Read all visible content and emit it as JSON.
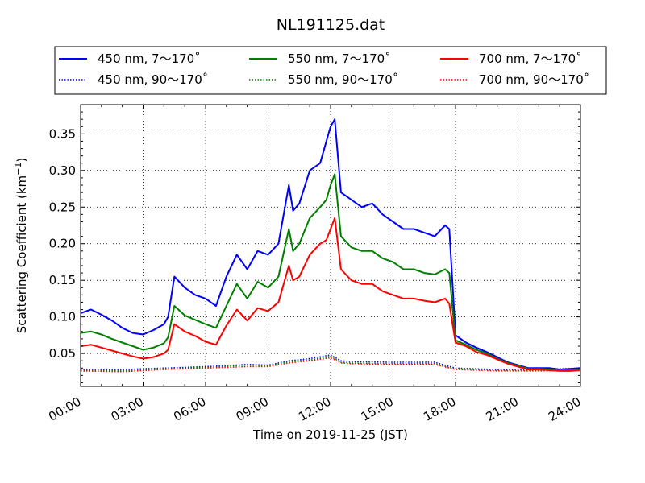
{
  "chart_data": {
    "type": "line",
    "title": "NL191125.dat",
    "xlabel": "Time on 2019-11-25 (JST)",
    "ylabel_main": "Scattering Coefficient (km",
    "ylabel_sup": "−1",
    "ylabel_close": ")",
    "x_unit": "hours",
    "xlim": [
      0,
      24
    ],
    "ylim": [
      0.005,
      0.39
    ],
    "x_ticks": [
      0,
      3,
      6,
      9,
      12,
      15,
      18,
      21,
      24
    ],
    "x_tick_labels": [
      "00:00",
      "03:00",
      "06:00",
      "09:00",
      "12:00",
      "15:00",
      "18:00",
      "21:00",
      "24:00"
    ],
    "y_ticks": [
      0.05,
      0.1,
      0.15,
      0.2,
      0.25,
      0.3,
      0.35
    ],
    "y_tick_labels": [
      "0.05",
      "0.10",
      "0.15",
      "0.20",
      "0.25",
      "0.30",
      "0.35"
    ],
    "grid": true,
    "legend_position": "top, above plot",
    "legend_columns": 3,
    "series": [
      {
        "name": "450 nm, 7～170˚",
        "color": "#0000ff",
        "style": "solid",
        "x": [
          0,
          0.5,
          1,
          1.5,
          2,
          2.5,
          3,
          3.5,
          4,
          4.2,
          4.5,
          5,
          5.5,
          6,
          6.5,
          7,
          7.5,
          8,
          8.5,
          9,
          9.5,
          10,
          10.2,
          10.5,
          11,
          11.5,
          11.8,
          12,
          12.2,
          12.5,
          13,
          13.5,
          14,
          14.5,
          15,
          15.5,
          16,
          16.5,
          17,
          17.5,
          17.7,
          18,
          18.5,
          19,
          19.5,
          20,
          20.5,
          21,
          21.5,
          22,
          22.5,
          23,
          23.5,
          24
        ],
        "y": [
          0.105,
          0.11,
          0.103,
          0.095,
          0.085,
          0.078,
          0.076,
          0.082,
          0.09,
          0.1,
          0.155,
          0.14,
          0.13,
          0.125,
          0.115,
          0.155,
          0.185,
          0.165,
          0.19,
          0.185,
          0.2,
          0.28,
          0.245,
          0.255,
          0.3,
          0.31,
          0.34,
          0.36,
          0.37,
          0.27,
          0.26,
          0.25,
          0.255,
          0.24,
          0.23,
          0.22,
          0.22,
          0.215,
          0.21,
          0.225,
          0.22,
          0.075,
          0.065,
          0.058,
          0.052,
          0.045,
          0.038,
          0.034,
          0.03,
          0.03,
          0.03,
          0.028,
          0.029,
          0.03
        ]
      },
      {
        "name": "550 nm, 7～170˚",
        "color": "#008000",
        "style": "solid",
        "x": [
          0,
          0.5,
          1,
          1.5,
          2,
          2.5,
          3,
          3.5,
          4,
          4.2,
          4.5,
          5,
          5.5,
          6,
          6.5,
          7,
          7.5,
          8,
          8.5,
          9,
          9.5,
          10,
          10.2,
          10.5,
          11,
          11.5,
          11.8,
          12,
          12.2,
          12.5,
          13,
          13.5,
          14,
          14.5,
          15,
          15.5,
          16,
          16.5,
          17,
          17.5,
          17.7,
          18,
          18.5,
          19,
          19.5,
          20,
          20.5,
          21,
          21.5,
          22,
          22.5,
          23,
          23.5,
          24
        ],
        "y": [
          0.078,
          0.08,
          0.076,
          0.07,
          0.065,
          0.06,
          0.055,
          0.058,
          0.064,
          0.072,
          0.115,
          0.102,
          0.096,
          0.09,
          0.085,
          0.115,
          0.145,
          0.125,
          0.148,
          0.14,
          0.155,
          0.22,
          0.19,
          0.2,
          0.235,
          0.25,
          0.26,
          0.28,
          0.295,
          0.21,
          0.195,
          0.19,
          0.19,
          0.18,
          0.175,
          0.165,
          0.165,
          0.16,
          0.158,
          0.165,
          0.16,
          0.068,
          0.062,
          0.055,
          0.05,
          0.043,
          0.037,
          0.033,
          0.029,
          0.029,
          0.028,
          0.027,
          0.027,
          0.028
        ]
      },
      {
        "name": "700 nm, 7～170˚",
        "color": "#ff0000",
        "style": "solid",
        "x": [
          0,
          0.5,
          1,
          1.5,
          2,
          2.5,
          3,
          3.5,
          4,
          4.2,
          4.5,
          5,
          5.5,
          6,
          6.5,
          7,
          7.5,
          8,
          8.5,
          9,
          9.5,
          10,
          10.2,
          10.5,
          11,
          11.5,
          11.8,
          12,
          12.2,
          12.5,
          13,
          13.5,
          14,
          14.5,
          15,
          15.5,
          16,
          16.5,
          17,
          17.5,
          17.7,
          18,
          18.5,
          19,
          19.5,
          20,
          20.5,
          21,
          21.5,
          22,
          22.5,
          23,
          23.5,
          24
        ],
        "y": [
          0.06,
          0.062,
          0.058,
          0.054,
          0.05,
          0.046,
          0.043,
          0.045,
          0.05,
          0.055,
          0.09,
          0.08,
          0.074,
          0.066,
          0.062,
          0.088,
          0.11,
          0.095,
          0.112,
          0.108,
          0.12,
          0.17,
          0.15,
          0.155,
          0.185,
          0.2,
          0.205,
          0.22,
          0.235,
          0.165,
          0.15,
          0.145,
          0.145,
          0.135,
          0.13,
          0.125,
          0.125,
          0.122,
          0.12,
          0.125,
          0.118,
          0.065,
          0.06,
          0.052,
          0.048,
          0.042,
          0.036,
          0.032,
          0.028,
          0.028,
          0.027,
          0.026,
          0.026,
          0.027
        ]
      },
      {
        "name": "450 nm, 90～170˚",
        "color": "#0000ff",
        "style": "dotted",
        "x": [
          0,
          2,
          4,
          6,
          8,
          9,
          10,
          11,
          12,
          12.5,
          13,
          15,
          17,
          18,
          20,
          22,
          24
        ],
        "y": [
          0.028,
          0.028,
          0.03,
          0.032,
          0.035,
          0.034,
          0.04,
          0.043,
          0.048,
          0.04,
          0.039,
          0.038,
          0.038,
          0.03,
          0.028,
          0.028,
          0.03
        ]
      },
      {
        "name": "550 nm, 90～170˚",
        "color": "#008000",
        "style": "dotted",
        "x": [
          0,
          2,
          4,
          6,
          8,
          9,
          10,
          11,
          12,
          12.5,
          13,
          15,
          17,
          18,
          20,
          22,
          24
        ],
        "y": [
          0.027,
          0.026,
          0.029,
          0.031,
          0.034,
          0.033,
          0.039,
          0.041,
          0.046,
          0.038,
          0.037,
          0.036,
          0.036,
          0.029,
          0.027,
          0.027,
          0.028
        ]
      },
      {
        "name": "700 nm, 90～170˚",
        "color": "#ff0000",
        "style": "dotted",
        "x": [
          0,
          2,
          4,
          6,
          8,
          9,
          10,
          11,
          12,
          12.5,
          13,
          15,
          17,
          18,
          20,
          22,
          24
        ],
        "y": [
          0.026,
          0.025,
          0.028,
          0.03,
          0.032,
          0.032,
          0.037,
          0.04,
          0.044,
          0.037,
          0.036,
          0.035,
          0.035,
          0.028,
          0.026,
          0.026,
          0.027
        ]
      }
    ]
  }
}
